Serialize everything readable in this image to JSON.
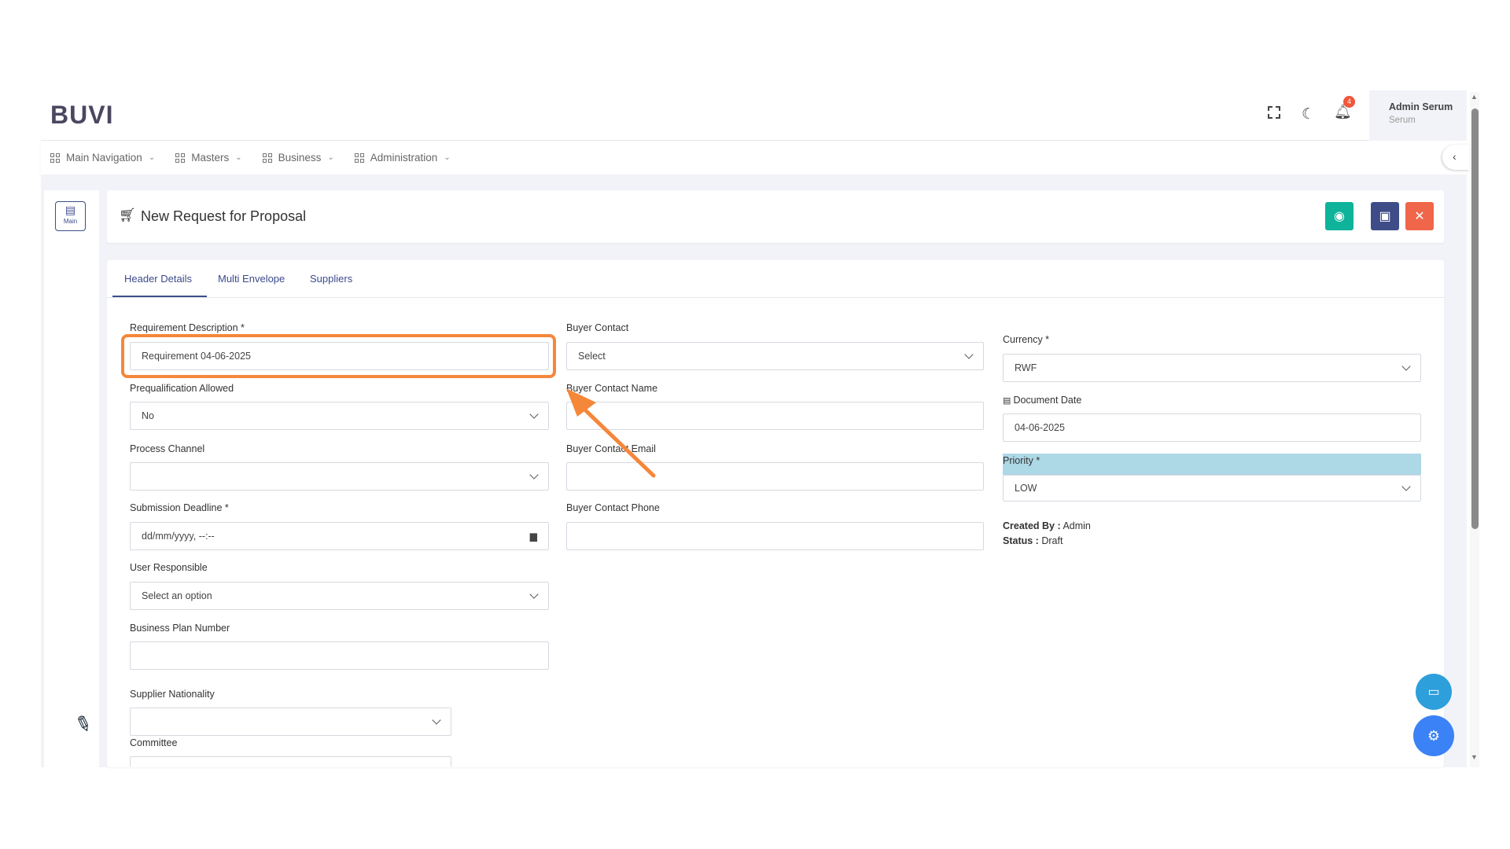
{
  "header": {
    "logo": "BUVI",
    "notification_count": "4",
    "user_name": "Admin Serum",
    "user_role": "Serum"
  },
  "nav": [
    {
      "label": "Main Navigation"
    },
    {
      "label": "Masters"
    },
    {
      "label": "Business"
    },
    {
      "label": "Administration"
    }
  ],
  "sidebar": {
    "main_label": "Main"
  },
  "page": {
    "title": "New Request for Proposal"
  },
  "tabs": [
    {
      "label": "Header Details",
      "active": true
    },
    {
      "label": "Multi Envelope"
    },
    {
      "label": "Suppliers"
    }
  ],
  "form": {
    "requirement_description": {
      "label": "Requirement Description *",
      "value": "Requirement 04-06-2025"
    },
    "prequalification": {
      "label": "Prequalification Allowed",
      "value": "No"
    },
    "process_channel": {
      "label": "Process Channel",
      "value": ""
    },
    "submission_deadline": {
      "label": "Submission Deadline *",
      "value": "dd/mm/yyyy, --:--"
    },
    "user_responsible": {
      "label": "User Responsible",
      "value": "Select an option"
    },
    "business_plan_number": {
      "label": "Business Plan Number",
      "value": ""
    },
    "supplier_nationality": {
      "label": "Supplier Nationality",
      "value": ""
    },
    "committee": {
      "label": "Committee",
      "value": ""
    },
    "buyer_contact": {
      "label": "Buyer Contact",
      "value": "Select"
    },
    "buyer_contact_name": {
      "label": "Buyer Contact Name",
      "value": ""
    },
    "buyer_contact_email": {
      "label": "Buyer Contact Email",
      "value": ""
    },
    "buyer_contact_phone": {
      "label": "Buyer Contact Phone",
      "value": ""
    },
    "currency": {
      "label": "Currency *",
      "value": "RWF"
    },
    "document_date": {
      "label": "Document Date",
      "value": "04-06-2025"
    },
    "priority": {
      "label": "Priority *",
      "value": "LOW"
    },
    "created_by": {
      "label": "Created By :",
      "value": "Admin"
    },
    "status": {
      "label": "Status :",
      "value": "Draft"
    }
  },
  "colors": {
    "accent": "#3e4c88",
    "view": "#0fb39a",
    "save": "#3e4c88",
    "close": "#f0664a",
    "highlight": "#f5873a",
    "priority_bg": "#add8e6"
  }
}
